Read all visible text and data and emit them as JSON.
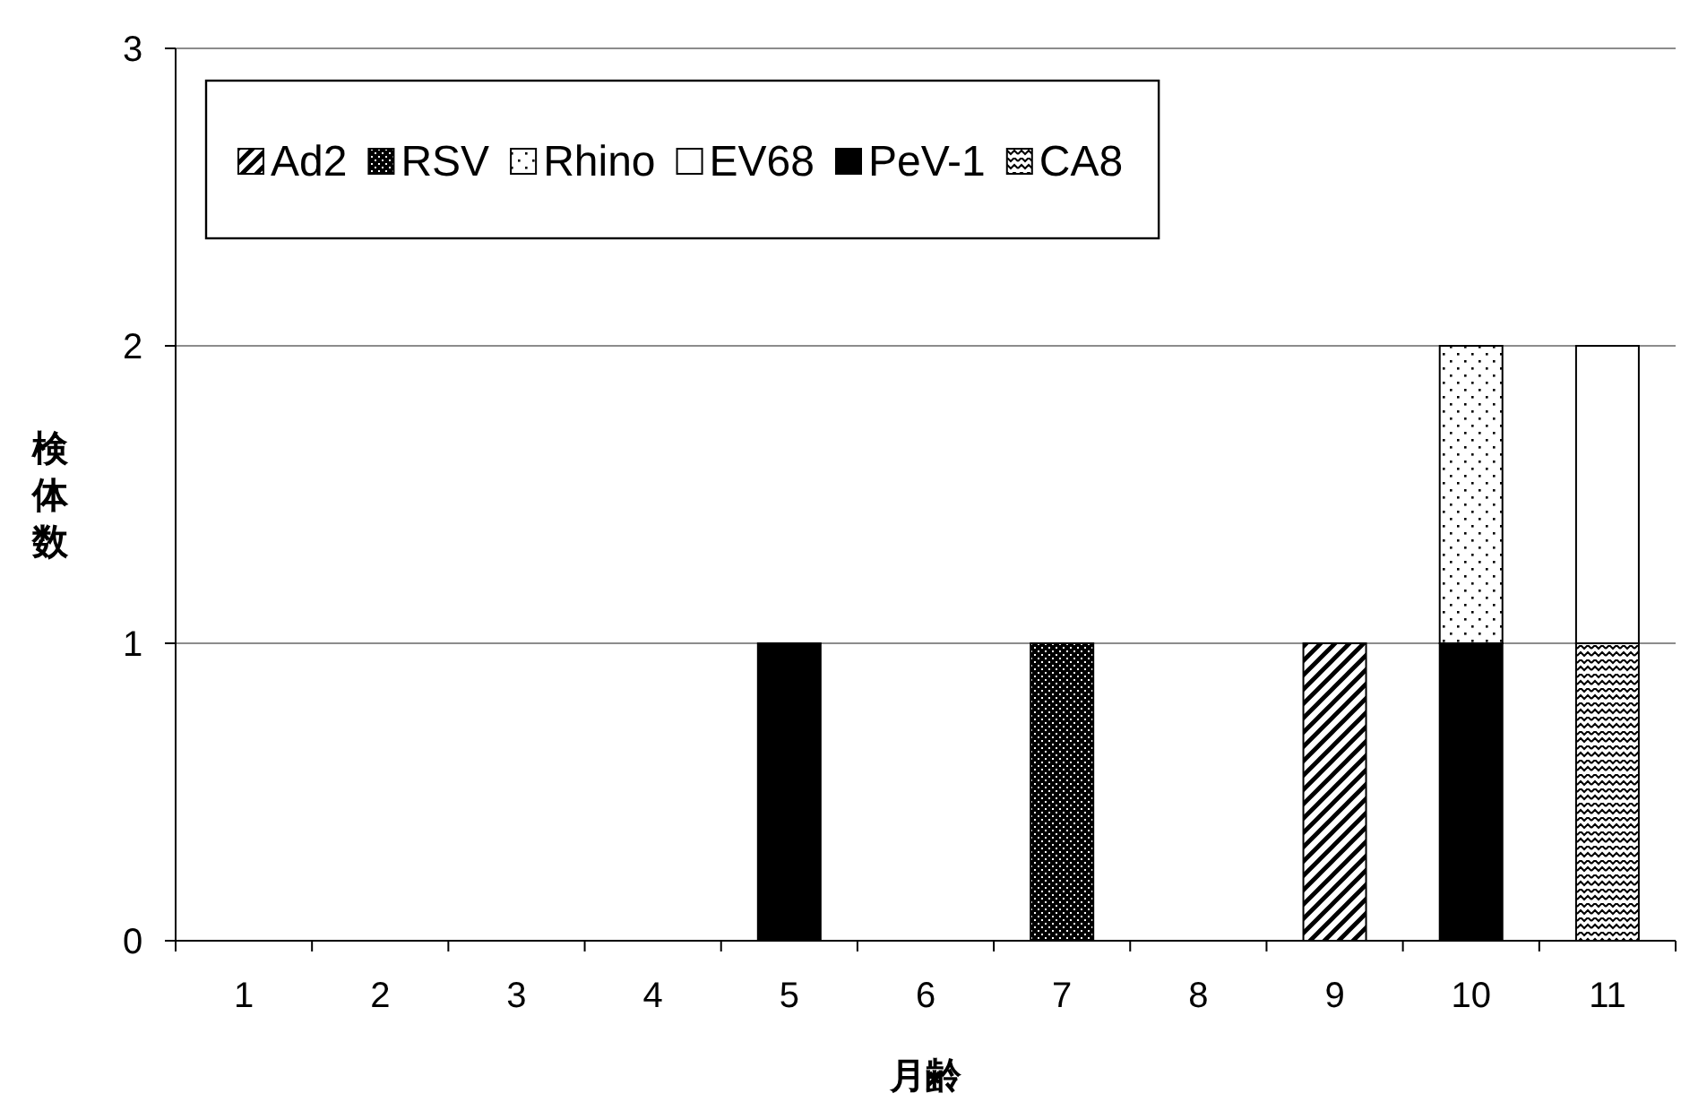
{
  "chart_data": {
    "type": "bar",
    "stacked": true,
    "xlabel": "月齢",
    "ylabel": "検体数",
    "categories": [
      "1",
      "2",
      "3",
      "4",
      "5",
      "6",
      "7",
      "8",
      "9",
      "10",
      "11"
    ],
    "series": [
      {
        "name": "CA8",
        "color": "#000000",
        "values": [
          null,
          null,
          null,
          null,
          null,
          null,
          null,
          null,
          null,
          null,
          1
        ]
      },
      {
        "name": "PeV-1",
        "color": "#000000",
        "values": [
          null,
          null,
          null,
          null,
          1,
          null,
          null,
          null,
          null,
          1,
          null
        ]
      },
      {
        "name": "EV68",
        "color": "#ffffff",
        "values": [
          null,
          null,
          null,
          null,
          null,
          null,
          null,
          null,
          null,
          null,
          1
        ]
      },
      {
        "name": "Rhino",
        "color": "#000000",
        "values": [
          null,
          null,
          null,
          null,
          null,
          null,
          null,
          null,
          null,
          1,
          null
        ]
      },
      {
        "name": "RSV",
        "color": "#000000",
        "values": [
          null,
          null,
          null,
          null,
          null,
          null,
          1,
          null,
          null,
          null,
          null
        ]
      },
      {
        "name": "Ad2",
        "color": "#000000",
        "values": [
          null,
          null,
          null,
          null,
          null,
          null,
          null,
          null,
          1,
          null,
          null
        ]
      }
    ],
    "ylim": [
      0,
      3
    ],
    "yticks": [
      0,
      1,
      2,
      3
    ],
    "grid": "y",
    "legend": "top left"
  }
}
